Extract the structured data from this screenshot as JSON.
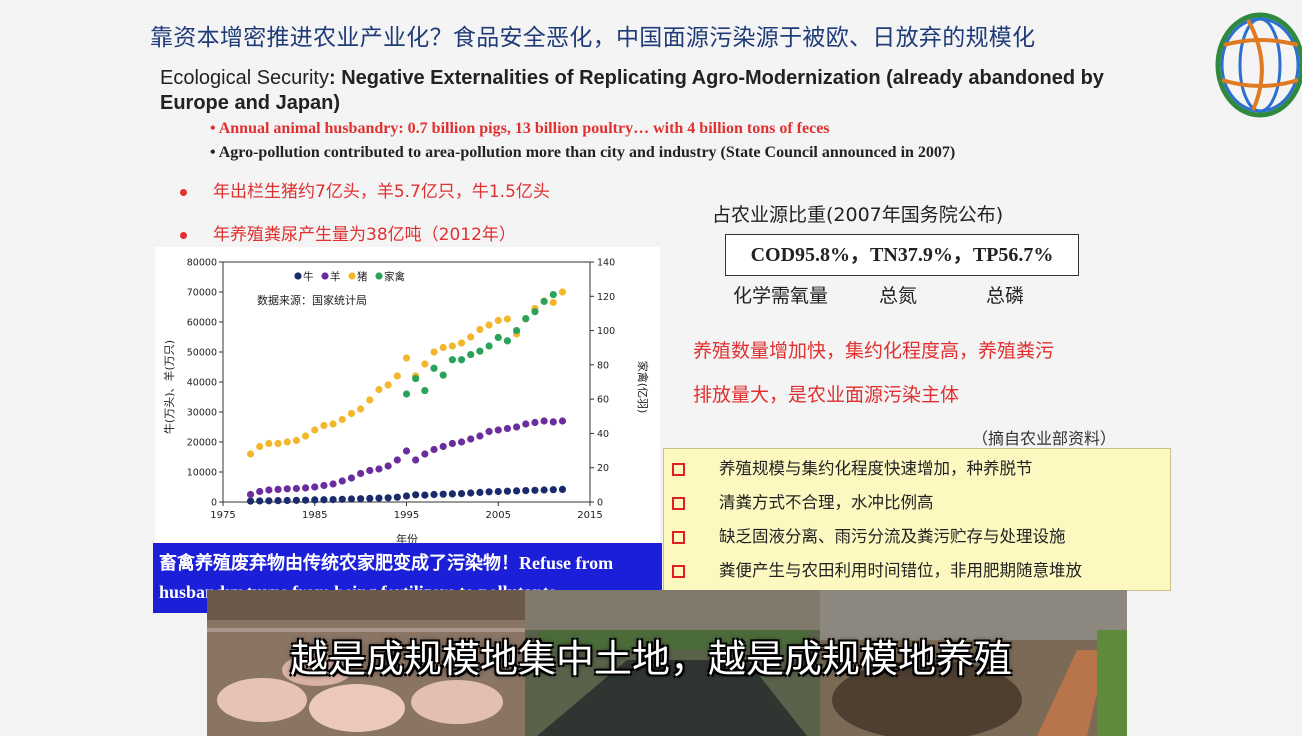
{
  "slide": {
    "title": "靠资本增密推进农业产业化？食品安全恶化，中国面源污染源于被欧、日放弃的规模化",
    "eco_prefix": "Ecological Security",
    "eco_colon": ":",
    "eco_heading": "Negative Externalities of Replicating Agro-Modernization (already abandoned by Europe and Japan)",
    "bullet_en_1": "• Annual animal husbandry: 0.7 billion pigs, 13 billion poultry… with 4 billion tons of feces",
    "bullet_en_2": "• Agro-pollution contributed to area-pollution more than city and industry (State Council announced in  2007)",
    "bullet_cn_1": "年出栏生猪约7亿头，羊5.7亿只，牛1.5亿头",
    "bullet_cn_2": "年养殖粪尿产生量为38亿吨（2012年）",
    "share_title": "占农业源比重(2007年国务院公布)",
    "share_values": "COD95.8%，TN37.9%，TP56.7%",
    "share_label_cod": "化学需氧量",
    "share_label_tn": "总氮",
    "share_label_tp": "总磷",
    "red_line_1": "养殖数量增加快，集约化程度高，养殖粪污",
    "red_line_2": "排放量大，是农业面源污染主体",
    "source_note": "（摘自农业部资料）",
    "reasons": [
      "养殖规模与集约化程度快速增加，种养脱节",
      "清粪方式不合理，水冲比例高",
      "缺乏固液分离、雨污分流及粪污贮存与处理设施",
      "粪便产生与农田利用时间错位，非用肥期随意堆放"
    ],
    "refuse_line_1": "畜禽养殖废弃物由传统农家肥变成了污染物！Refuse from",
    "refuse_line_2": "husbandry turns from being fertilizers to pollutants",
    "subtitle": "越是成规模地集中土地，越是成规模地养殖"
  },
  "chart_data": {
    "type": "scatter",
    "source_label": "数据来源：国家统计局",
    "xlabel": "年份",
    "ylabel_left": "牛(万头)、羊(万只)",
    "ylabel_right": "家禽(亿羽)",
    "xlim": [
      1975,
      2015
    ],
    "ylim_left": [
      0,
      80000
    ],
    "ylim_right": [
      0,
      140
    ],
    "x_ticks": [
      "1975",
      "1985",
      "1995",
      "2005",
      "2015"
    ],
    "y_left_ticks": [
      "0",
      "10000",
      "20000",
      "30000",
      "40000",
      "50000",
      "60000",
      "70000",
      "80000"
    ],
    "y_right_ticks": [
      "0",
      "20",
      "40",
      "60",
      "80",
      "100",
      "120",
      "140"
    ],
    "series": [
      {
        "name": "牛",
        "axis": "left",
        "color": "#1a2a6c",
        "x": [
          1978,
          1979,
          1980,
          1981,
          1982,
          1983,
          1984,
          1985,
          1986,
          1987,
          1988,
          1989,
          1990,
          1991,
          1992,
          1993,
          1994,
          1995,
          1996,
          1997,
          1998,
          1999,
          2000,
          2001,
          2002,
          2003,
          2004,
          2005,
          2006,
          2007,
          2008,
          2009,
          2010,
          2011,
          2012
        ],
        "y": [
          300,
          350,
          400,
          450,
          500,
          550,
          600,
          700,
          750,
          800,
          900,
          1000,
          1100,
          1200,
          1300,
          1400,
          1600,
          2000,
          2400,
          2300,
          2500,
          2600,
          2700,
          2800,
          3000,
          3200,
          3400,
          3500,
          3600,
          3700,
          3800,
          3900,
          4000,
          4100,
          4200
        ]
      },
      {
        "name": "羊",
        "axis": "left",
        "color": "#6a2da0",
        "x": [
          1978,
          1979,
          1980,
          1981,
          1982,
          1983,
          1984,
          1985,
          1986,
          1987,
          1988,
          1989,
          1990,
          1991,
          1992,
          1993,
          1994,
          1995,
          1996,
          1997,
          1998,
          1999,
          2000,
          2001,
          2002,
          2003,
          2004,
          2005,
          2006,
          2007,
          2008,
          2009,
          2010,
          2011,
          2012
        ],
        "y": [
          2500,
          3500,
          4000,
          4200,
          4400,
          4500,
          4700,
          5000,
          5500,
          6000,
          7000,
          8000,
          9500,
          10500,
          11000,
          12000,
          14000,
          17000,
          14000,
          16000,
          17500,
          18500,
          19500,
          20000,
          21000,
          22000,
          23500,
          24000,
          24500,
          25000,
          26000,
          26500,
          27000,
          26700,
          27000
        ]
      },
      {
        "name": "猪",
        "axis": "left",
        "color": "#f2b72c",
        "x": [
          1978,
          1979,
          1980,
          1981,
          1982,
          1983,
          1984,
          1985,
          1986,
          1987,
          1988,
          1989,
          1990,
          1991,
          1992,
          1993,
          1994,
          1995,
          1996,
          1997,
          1998,
          1999,
          2000,
          2001,
          2002,
          2003,
          2004,
          2005,
          2006,
          2007,
          2008,
          2009,
          2010,
          2011,
          2012
        ],
        "y": [
          16000,
          18500,
          19500,
          19500,
          20000,
          20500,
          22000,
          24000,
          25500,
          26000,
          27500,
          29500,
          31000,
          34000,
          37500,
          39000,
          42000,
          48000,
          42000,
          46000,
          50000,
          51500,
          52000,
          53000,
          55000,
          57500,
          59000,
          60500,
          61000,
          56000,
          61000,
          64500,
          67000,
          66500,
          70000
        ]
      },
      {
        "name": "家禽",
        "axis": "right",
        "color": "#2aa35a",
        "x": [
          1995,
          1996,
          1997,
          1998,
          1999,
          2000,
          2001,
          2002,
          2003,
          2004,
          2005,
          2006,
          2007,
          2008,
          2009,
          2010,
          2011
        ],
        "y": [
          63,
          72,
          65,
          78,
          74,
          83,
          83,
          86,
          88,
          91,
          96,
          94,
          100,
          107,
          111,
          117,
          121
        ]
      }
    ]
  }
}
